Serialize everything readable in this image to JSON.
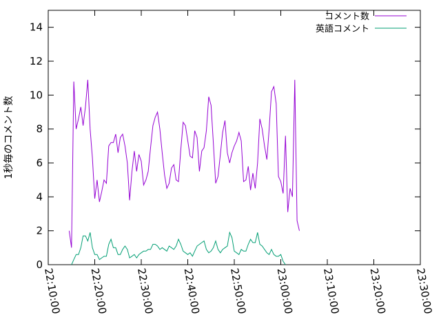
{
  "chart_data": {
    "type": "line",
    "title": "",
    "xlabel": "",
    "ylabel": "1秒毎のコメント数",
    "xlim": [
      "22:10:00",
      "23:30:00"
    ],
    "ylim": [
      0,
      15
    ],
    "x_ticks": [
      "22:10:00",
      "22:20:00",
      "22:30:00",
      "22:40:00",
      "22:50:00",
      "23:00:00",
      "23:10:00",
      "23:20:00",
      "23:30:00"
    ],
    "y_ticks": [
      0,
      2,
      4,
      6,
      8,
      10,
      12,
      14
    ],
    "grid": false,
    "legend_position": "top-right",
    "series": [
      {
        "name": "コメント数",
        "color": "#9400d3",
        "points": [
          [
            "22:14:30",
            2.0
          ],
          [
            "22:15:00",
            1.0
          ],
          [
            "22:15:30",
            10.8
          ],
          [
            "22:16:00",
            8.0
          ],
          [
            "22:16:30",
            8.6
          ],
          [
            "22:17:00",
            9.3
          ],
          [
            "22:17:30",
            8.2
          ],
          [
            "22:18:00",
            9.3
          ],
          [
            "22:18:30",
            10.9
          ],
          [
            "22:19:00",
            8.0
          ],
          [
            "22:19:30",
            6.3
          ],
          [
            "22:20:00",
            3.9
          ],
          [
            "22:20:30",
            5.0
          ],
          [
            "22:21:00",
            3.7
          ],
          [
            "22:21:30",
            4.3
          ],
          [
            "22:22:00",
            5.0
          ],
          [
            "22:22:30",
            4.8
          ],
          [
            "22:23:00",
            7.0
          ],
          [
            "22:23:30",
            7.2
          ],
          [
            "22:24:00",
            7.2
          ],
          [
            "22:24:30",
            7.7
          ],
          [
            "22:25:00",
            6.6
          ],
          [
            "22:25:30",
            7.5
          ],
          [
            "22:26:00",
            7.7
          ],
          [
            "22:26:30",
            7.0
          ],
          [
            "22:27:00",
            6.0
          ],
          [
            "22:27:30",
            3.8
          ],
          [
            "22:28:00",
            5.5
          ],
          [
            "22:28:30",
            6.7
          ],
          [
            "22:29:00",
            5.5
          ],
          [
            "22:29:30",
            6.5
          ],
          [
            "22:30:00",
            6.1
          ],
          [
            "22:30:30",
            4.7
          ],
          [
            "22:31:00",
            5.0
          ],
          [
            "22:31:30",
            5.5
          ],
          [
            "22:32:00",
            6.9
          ],
          [
            "22:32:30",
            8.2
          ],
          [
            "22:33:00",
            8.7
          ],
          [
            "22:33:30",
            9.0
          ],
          [
            "22:34:00",
            8.0
          ],
          [
            "22:34:30",
            6.6
          ],
          [
            "22:35:00",
            5.3
          ],
          [
            "22:35:30",
            4.5
          ],
          [
            "22:36:00",
            4.8
          ],
          [
            "22:36:30",
            5.7
          ],
          [
            "22:37:00",
            5.9
          ],
          [
            "22:37:30",
            5.0
          ],
          [
            "22:38:00",
            4.9
          ],
          [
            "22:38:30",
            6.8
          ],
          [
            "22:39:00",
            8.4
          ],
          [
            "22:39:30",
            8.2
          ],
          [
            "22:40:00",
            7.3
          ],
          [
            "22:40:30",
            6.4
          ],
          [
            "22:41:00",
            6.3
          ],
          [
            "22:41:30",
            7.9
          ],
          [
            "22:42:00",
            7.5
          ],
          [
            "22:42:30",
            5.5
          ],
          [
            "22:43:00",
            6.7
          ],
          [
            "22:43:30",
            6.9
          ],
          [
            "22:44:00",
            7.9
          ],
          [
            "22:44:30",
            9.9
          ],
          [
            "22:45:00",
            9.4
          ],
          [
            "22:45:30",
            7.2
          ],
          [
            "22:46:00",
            4.8
          ],
          [
            "22:46:30",
            5.2
          ],
          [
            "22:47:00",
            6.5
          ],
          [
            "22:47:30",
            7.8
          ],
          [
            "22:48:00",
            8.5
          ],
          [
            "22:48:30",
            6.6
          ],
          [
            "22:49:00",
            6.0
          ],
          [
            "22:49:30",
            6.6
          ],
          [
            "22:50:00",
            7.0
          ],
          [
            "22:50:30",
            7.3
          ],
          [
            "22:51:00",
            7.8
          ],
          [
            "22:51:30",
            7.3
          ],
          [
            "22:52:00",
            4.9
          ],
          [
            "22:52:30",
            5.0
          ],
          [
            "22:53:00",
            5.8
          ],
          [
            "22:53:30",
            4.4
          ],
          [
            "22:54:00",
            5.4
          ],
          [
            "22:54:30",
            4.5
          ],
          [
            "22:55:00",
            6.0
          ],
          [
            "22:55:30",
            8.6
          ],
          [
            "22:56:00",
            8.0
          ],
          [
            "22:56:30",
            7.0
          ],
          [
            "22:57:00",
            6.2
          ],
          [
            "22:57:30",
            8.0
          ],
          [
            "22:58:00",
            10.2
          ],
          [
            "22:58:30",
            10.5
          ],
          [
            "22:59:00",
            9.5
          ],
          [
            "22:59:30",
            5.2
          ],
          [
            "23:00:00",
            4.9
          ],
          [
            "23:00:30",
            4.2
          ],
          [
            "23:01:00",
            7.6
          ],
          [
            "23:01:30",
            3.1
          ],
          [
            "23:02:00",
            4.5
          ],
          [
            "23:02:30",
            4.0
          ],
          [
            "23:03:00",
            10.9
          ],
          [
            "23:03:30",
            2.6
          ],
          [
            "23:04:00",
            2.0
          ]
        ]
      },
      {
        "name": "英語コメント",
        "color": "#009e73",
        "points": [
          [
            "22:15:00",
            0.0
          ],
          [
            "22:15:30",
            0.3
          ],
          [
            "22:16:00",
            0.6
          ],
          [
            "22:16:30",
            0.6
          ],
          [
            "22:17:00",
            1.0
          ],
          [
            "22:17:30",
            1.7
          ],
          [
            "22:18:00",
            1.7
          ],
          [
            "22:18:30",
            1.4
          ],
          [
            "22:19:00",
            1.9
          ],
          [
            "22:19:30",
            1.0
          ],
          [
            "22:20:00",
            0.6
          ],
          [
            "22:20:30",
            0.6
          ],
          [
            "22:21:00",
            0.3
          ],
          [
            "22:21:30",
            0.4
          ],
          [
            "22:22:00",
            0.5
          ],
          [
            "22:22:30",
            0.5
          ],
          [
            "22:23:00",
            1.2
          ],
          [
            "22:23:30",
            1.5
          ],
          [
            "22:24:00",
            1.0
          ],
          [
            "22:24:30",
            1.0
          ],
          [
            "22:25:00",
            0.6
          ],
          [
            "22:25:30",
            0.6
          ],
          [
            "22:26:00",
            0.9
          ],
          [
            "22:26:30",
            1.1
          ],
          [
            "22:27:00",
            0.9
          ],
          [
            "22:27:30",
            0.4
          ],
          [
            "22:28:00",
            0.5
          ],
          [
            "22:28:30",
            0.6
          ],
          [
            "22:29:00",
            0.4
          ],
          [
            "22:29:30",
            0.6
          ],
          [
            "22:30:00",
            0.7
          ],
          [
            "22:30:30",
            0.8
          ],
          [
            "22:31:00",
            0.8
          ],
          [
            "22:31:30",
            0.9
          ],
          [
            "22:32:00",
            0.9
          ],
          [
            "22:32:30",
            1.2
          ],
          [
            "22:33:00",
            1.2
          ],
          [
            "22:33:30",
            1.1
          ],
          [
            "22:34:00",
            0.9
          ],
          [
            "22:34:30",
            1.0
          ],
          [
            "22:35:00",
            0.9
          ],
          [
            "22:35:30",
            0.8
          ],
          [
            "22:36:00",
            1.1
          ],
          [
            "22:36:30",
            1.0
          ],
          [
            "22:37:00",
            0.9
          ],
          [
            "22:37:30",
            1.1
          ],
          [
            "22:38:00",
            1.5
          ],
          [
            "22:38:30",
            1.2
          ],
          [
            "22:39:00",
            0.8
          ],
          [
            "22:39:30",
            0.7
          ],
          [
            "22:40:00",
            0.6
          ],
          [
            "22:40:30",
            0.7
          ],
          [
            "22:41:00",
            0.5
          ],
          [
            "22:41:30",
            0.8
          ],
          [
            "22:42:00",
            1.1
          ],
          [
            "22:42:30",
            1.2
          ],
          [
            "22:43:00",
            1.3
          ],
          [
            "22:43:30",
            1.4
          ],
          [
            "22:44:00",
            0.9
          ],
          [
            "22:44:30",
            0.7
          ],
          [
            "22:45:00",
            0.8
          ],
          [
            "22:45:30",
            1.0
          ],
          [
            "22:46:00",
            1.4
          ],
          [
            "22:46:30",
            0.9
          ],
          [
            "22:47:00",
            0.7
          ],
          [
            "22:47:30",
            0.9
          ],
          [
            "22:48:00",
            1.0
          ],
          [
            "22:48:30",
            1.1
          ],
          [
            "22:49:00",
            1.9
          ],
          [
            "22:49:30",
            1.6
          ],
          [
            "22:50:00",
            0.8
          ],
          [
            "22:50:30",
            0.7
          ],
          [
            "22:51:00",
            0.6
          ],
          [
            "22:51:30",
            0.9
          ],
          [
            "22:52:00",
            0.8
          ],
          [
            "22:52:30",
            0.8
          ],
          [
            "22:53:00",
            1.2
          ],
          [
            "22:53:30",
            1.5
          ],
          [
            "22:54:00",
            1.3
          ],
          [
            "22:54:30",
            1.3
          ],
          [
            "22:55:00",
            1.9
          ],
          [
            "22:55:30",
            1.2
          ],
          [
            "22:56:00",
            1.1
          ],
          [
            "22:56:30",
            0.9
          ],
          [
            "22:57:00",
            0.7
          ],
          [
            "22:57:30",
            0.6
          ],
          [
            "22:58:00",
            0.9
          ],
          [
            "22:58:30",
            0.6
          ],
          [
            "22:59:00",
            0.5
          ],
          [
            "22:59:30",
            0.5
          ],
          [
            "23:00:00",
            0.6
          ],
          [
            "23:00:30",
            0.2
          ],
          [
            "23:01:00",
            0.0
          ]
        ]
      }
    ]
  }
}
